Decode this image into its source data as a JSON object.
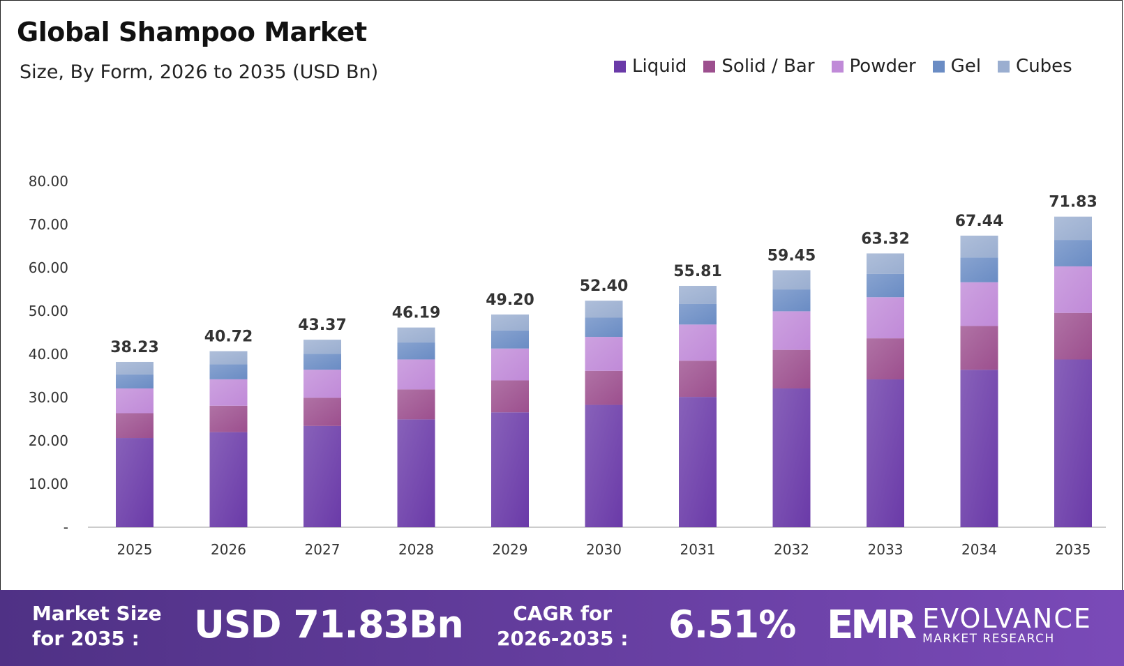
{
  "title": "Global Shampoo Market",
  "subtitle": "Size, By Form, 2026 to 2035 (USD Bn)",
  "chart_data": {
    "type": "bar",
    "stacked": true,
    "categories": [
      "2025",
      "2026",
      "2027",
      "2028",
      "2029",
      "2030",
      "2031",
      "2032",
      "2033",
      "2034",
      "2035"
    ],
    "series": [
      {
        "name": "Liquid",
        "color": "#6a3aa8",
        "values": [
          20.64,
          21.99,
          23.42,
          24.94,
          26.57,
          28.3,
          30.14,
          32.1,
          34.19,
          36.42,
          38.79
        ]
      },
      {
        "name": "Solid / Bar",
        "color": "#9c4f8e",
        "values": [
          5.73,
          6.11,
          6.51,
          6.93,
          7.38,
          7.86,
          8.37,
          8.92,
          9.5,
          10.12,
          10.77
        ]
      },
      {
        "name": "Powder",
        "color": "#c08ad8",
        "values": [
          5.73,
          6.11,
          6.51,
          6.93,
          7.38,
          7.86,
          8.37,
          8.92,
          9.5,
          10.12,
          10.77
        ]
      },
      {
        "name": "Gel",
        "color": "#6a8cc4",
        "values": [
          3.25,
          3.46,
          3.69,
          3.93,
          4.18,
          4.45,
          4.74,
          5.05,
          5.38,
          5.73,
          6.11
        ]
      },
      {
        "name": "Cubes",
        "color": "#9aaed0",
        "values": [
          2.88,
          3.05,
          3.24,
          3.46,
          3.69,
          3.93,
          4.19,
          4.46,
          4.75,
          5.05,
          5.39
        ]
      }
    ],
    "totals": [
      "38.23",
      "40.72",
      "43.37",
      "46.19",
      "49.20",
      "52.40",
      "55.81",
      "59.45",
      "63.32",
      "67.44",
      "71.83"
    ],
    "ylim": [
      0,
      80
    ],
    "yticks": [
      "-",
      "10.00",
      "20.00",
      "30.00",
      "40.00",
      "50.00",
      "60.00",
      "70.00",
      "80.00"
    ],
    "grid": false,
    "legend_position": "top-right"
  },
  "footer": {
    "market_size_label_1": "Market Size",
    "market_size_label_2": "for 2035 :",
    "market_size_value": "USD 71.83Bn",
    "cagr_label_1": "CAGR for",
    "cagr_label_2": "2026-2035 :",
    "cagr_value": "6.51%",
    "logo_mark": "EMR",
    "logo_name": "EVOLVANCE",
    "logo_tagline": "MARKET RESEARCH"
  }
}
